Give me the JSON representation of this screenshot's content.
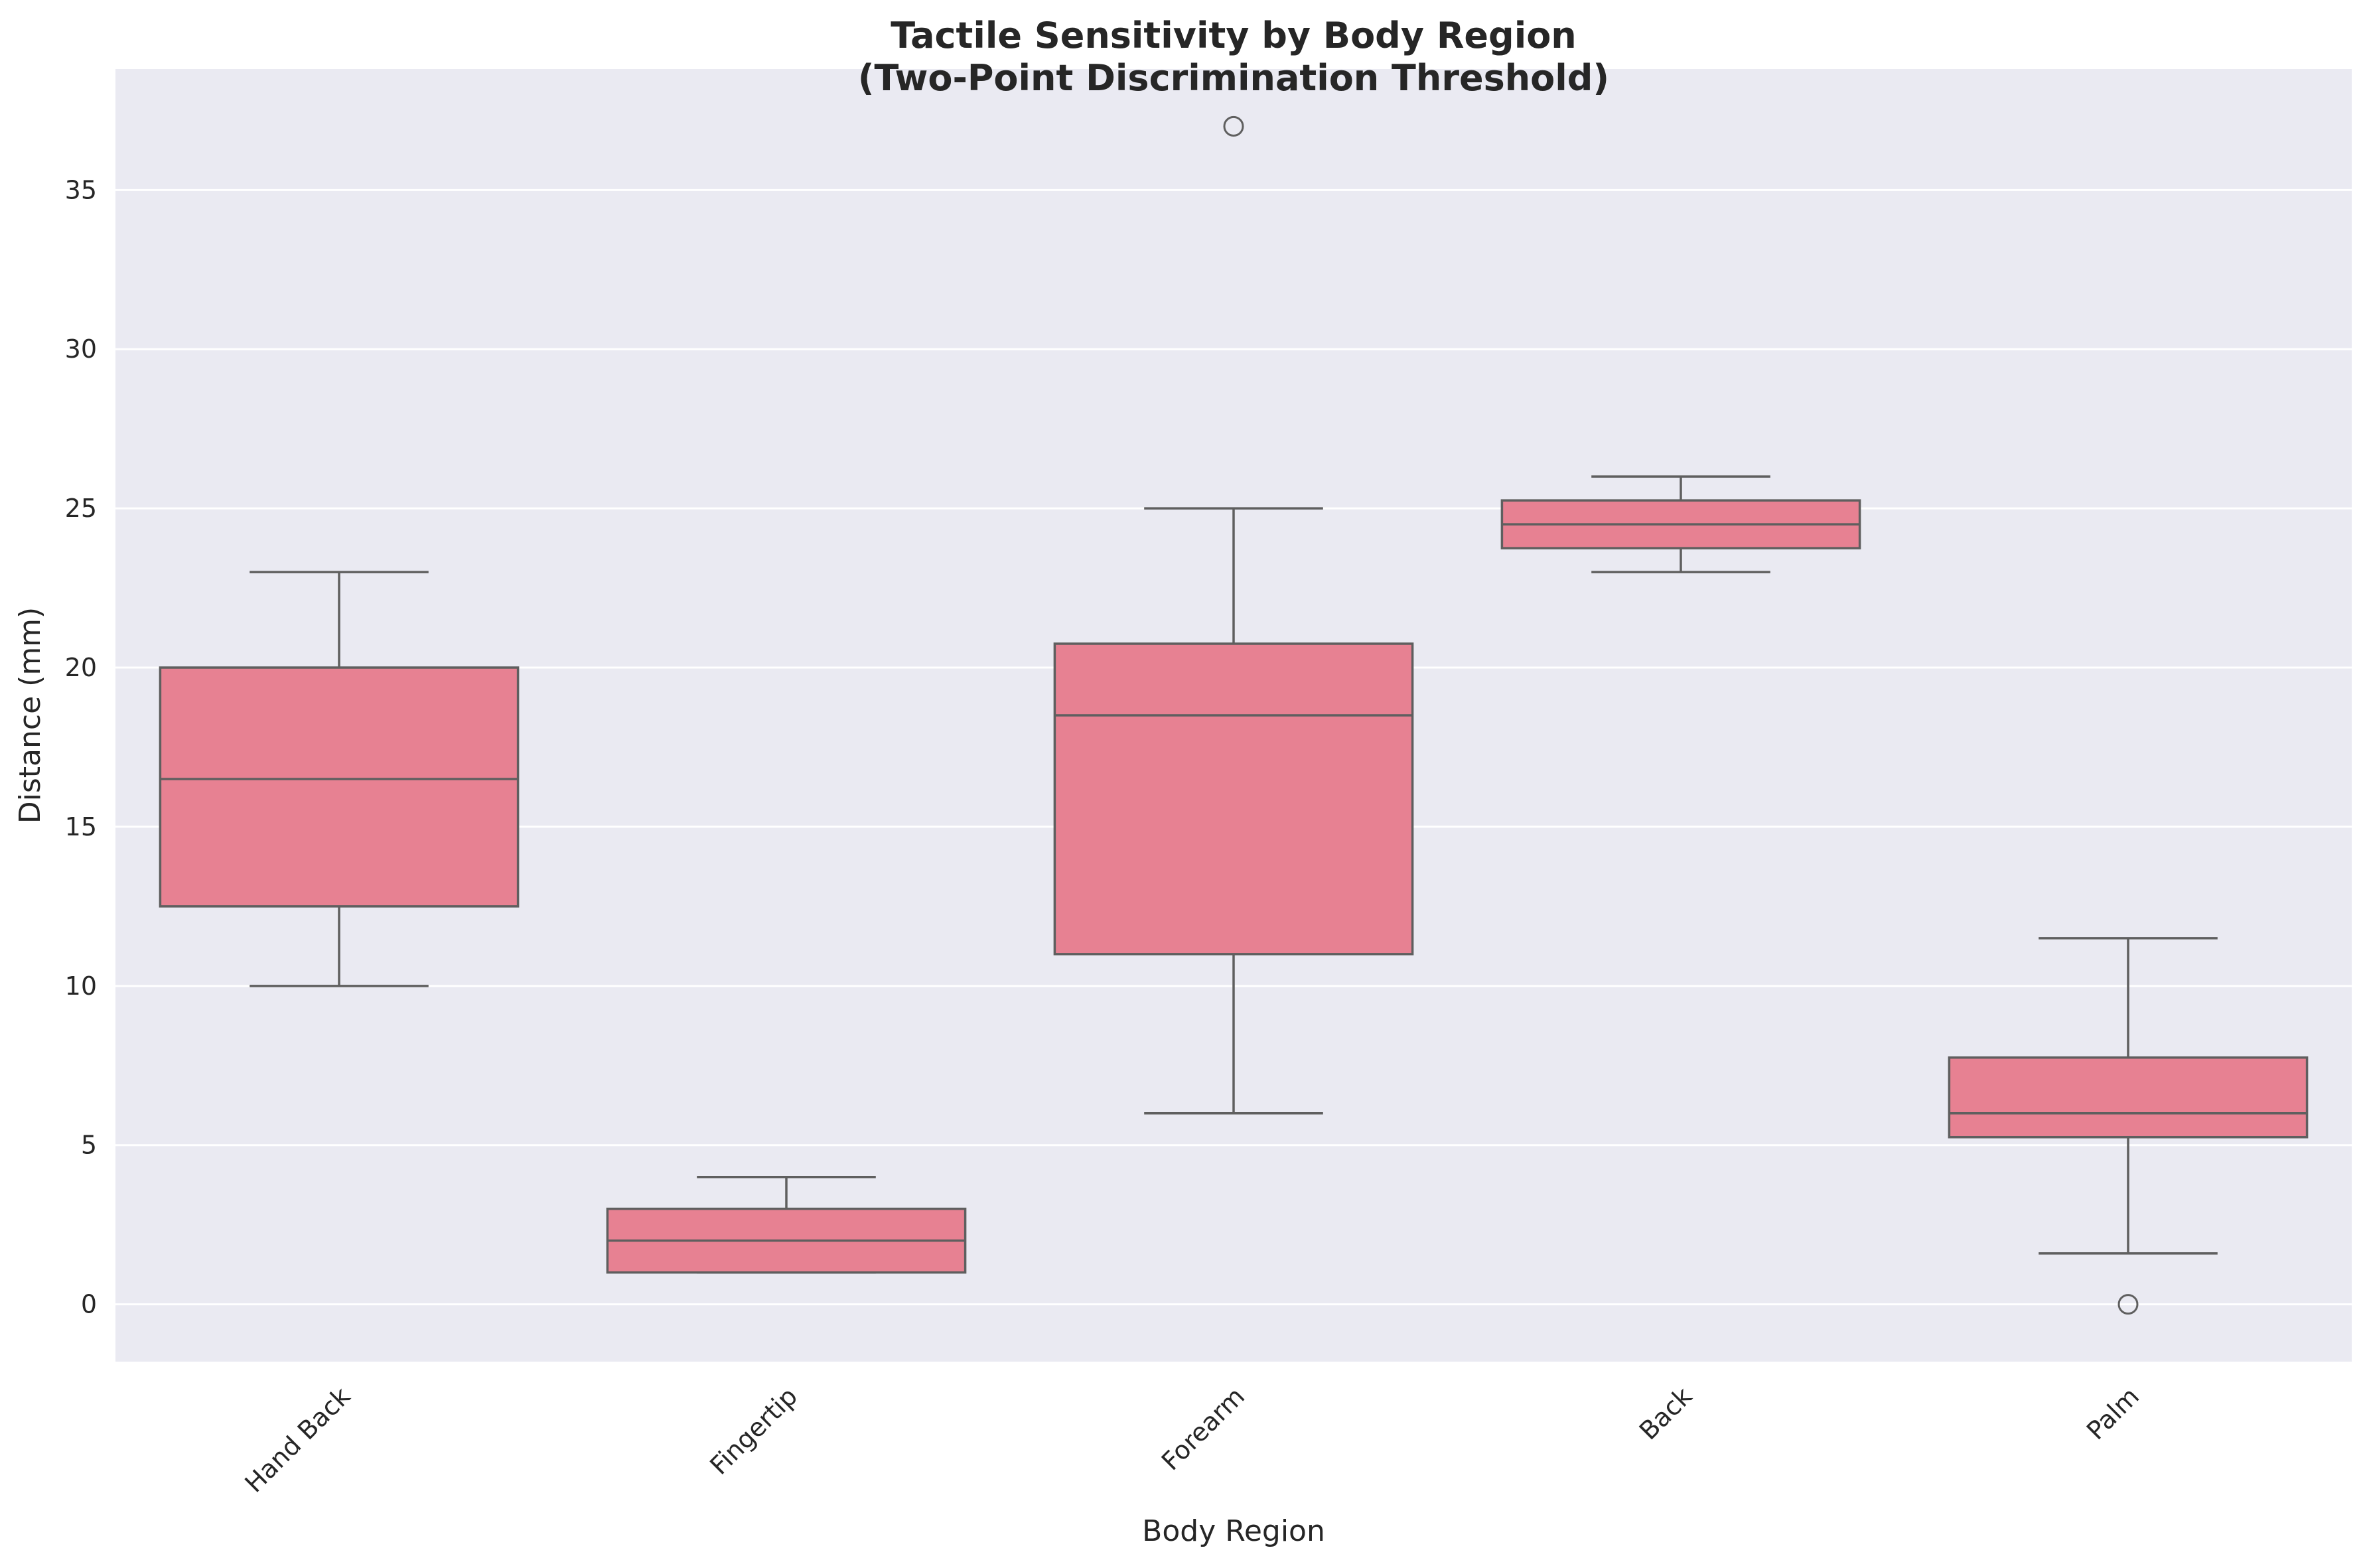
{
  "chart_data": {
    "type": "box",
    "title": "Tactile Sensitivity by Body Region\n(Two-Point Discrimination Threshold)",
    "xlabel": "Body Region",
    "ylabel": "Distance (mm)",
    "ylim": [
      -1.8,
      38.8
    ],
    "yticks": [
      0,
      5,
      10,
      15,
      20,
      25,
      30,
      35
    ],
    "grid": true,
    "background_color": "#eaeaf2",
    "grid_color": "#ffffff",
    "box_fill_color": "#e78192",
    "box_edge_color": "#5f5f5f",
    "categories": [
      "Hand Back",
      "Fingertip",
      "Forearm",
      "Back",
      "Palm"
    ],
    "boxes": [
      {
        "category": "Hand Back",
        "whisker_low": 10,
        "q1": 12.5,
        "median": 16.5,
        "q3": 20,
        "whisker_high": 23,
        "outliers": []
      },
      {
        "category": "Fingertip",
        "whisker_low": 1,
        "q1": 1,
        "median": 2,
        "q3": 3,
        "whisker_high": 4,
        "outliers": []
      },
      {
        "category": "Forearm",
        "whisker_low": 6,
        "q1": 11,
        "median": 18.5,
        "q3": 20.75,
        "whisker_high": 25,
        "outliers": [
          37
        ]
      },
      {
        "category": "Back",
        "whisker_low": 23,
        "q1": 23.75,
        "median": 24.5,
        "q3": 25.25,
        "whisker_high": 26,
        "outliers": []
      },
      {
        "category": "Palm",
        "whisker_low": 1.6,
        "q1": 5.25,
        "median": 6,
        "q3": 7.75,
        "whisker_high": 11.5,
        "outliers": [
          0
        ]
      }
    ]
  }
}
